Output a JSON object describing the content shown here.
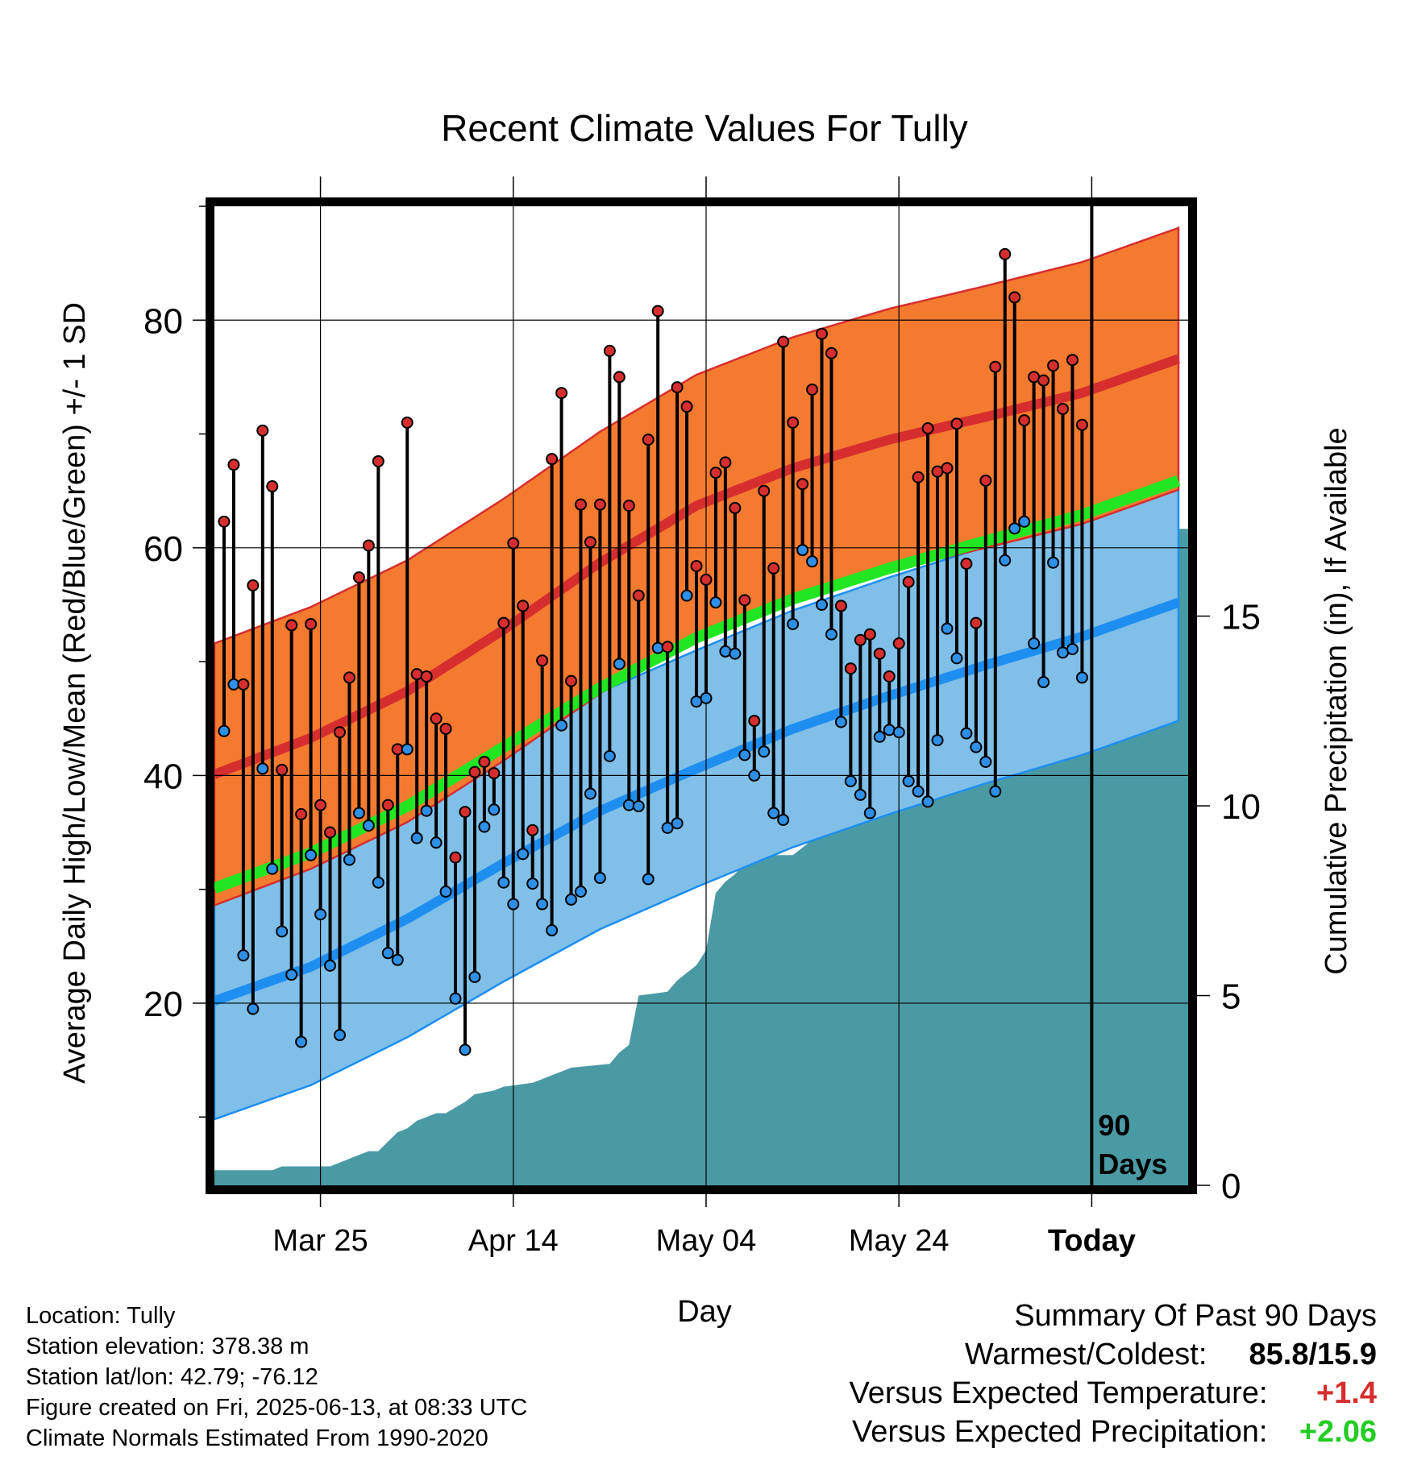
{
  "chart_data": {
    "type": "line",
    "title": "Recent Climate Values For Tully",
    "xlabel": "Day",
    "ylabel": "Average Daily High/Low/Mean (Red/Blue/Green) +/- 1 SD",
    "y2label": "Cumulative Precipitation (in), If Available",
    "x_ticks": [
      "Mar 25",
      "Apr 14",
      "May 04",
      "May 24",
      "Today"
    ],
    "x_tick_days": [
      11,
      31,
      51,
      71,
      91
    ],
    "xlim_days": [
      0,
      101
    ],
    "ylim": [
      4,
      90
    ],
    "y_ticks": [
      20,
      40,
      60,
      80
    ],
    "y2lim": [
      0,
      25.8
    ],
    "y2_ticks": [
      0,
      5,
      10,
      15
    ],
    "today_marker_label": "90 Days",
    "grid": true,
    "colors": {
      "high_band": "#f47a30",
      "high_mean": "#d62e2e",
      "low_band": "#7fbfe8",
      "low_mean": "#1e8ef0",
      "mean": "#22e622",
      "precip": "#4a9aa4",
      "high_dot": "#d62e2e",
      "low_dot": "#2e8fe6"
    },
    "normals": {
      "days": [
        0,
        10,
        20,
        30,
        40,
        50,
        60,
        70,
        80,
        90,
        100
      ],
      "high_mean": [
        40.1,
        43.3,
        47.4,
        52.8,
        58.7,
        63.7,
        67.0,
        69.5,
        71.5,
        73.6,
        76.6
      ],
      "high_sd": 11.5,
      "low_mean": [
        20.2,
        23.2,
        27.4,
        32.3,
        36.9,
        40.6,
        44.1,
        47.0,
        49.7,
        52.2,
        55.2
      ],
      "low_sd": 10.4,
      "mean": [
        30.1,
        33.2,
        37.3,
        42.5,
        47.7,
        52.1,
        55.5,
        58.2,
        60.6,
        62.9,
        65.9
      ]
    },
    "series": [
      {
        "name": "High",
        "values": [
          62.3,
          67.3,
          48.0,
          56.7,
          70.3,
          65.4,
          40.5,
          53.2,
          36.6,
          53.3,
          37.4,
          35.0,
          43.8,
          48.6,
          57.4,
          60.2,
          67.6,
          37.4,
          42.3,
          71.0,
          48.9,
          48.7,
          45.0,
          44.1,
          32.8,
          36.8,
          40.3,
          41.2,
          40.2,
          53.4,
          60.4,
          54.9,
          35.2,
          50.1,
          67.8,
          73.6,
          48.3,
          63.8,
          60.5,
          63.8,
          77.3,
          75.0,
          63.7,
          55.8,
          69.5,
          80.8,
          51.3,
          74.1,
          72.4,
          58.4,
          57.2,
          66.6,
          67.5,
          63.5,
          55.4,
          44.8,
          65.0,
          58.2,
          78.1,
          71.0,
          65.6,
          73.9,
          78.8,
          77.1,
          54.9,
          49.4,
          51.9,
          52.4,
          50.7,
          48.7,
          51.6,
          57.0,
          66.2,
          70.5,
          66.7,
          67.0,
          70.9,
          58.6,
          53.4,
          65.9,
          75.9,
          85.8,
          82.0,
          71.2,
          75.0,
          74.7,
          76.0,
          72.2,
          76.5,
          70.8
        ]
      },
      {
        "name": "Low",
        "values": [
          43.9,
          48.0,
          24.2,
          19.5,
          40.6,
          31.8,
          26.3,
          22.5,
          16.6,
          33.0,
          27.8,
          23.3,
          17.2,
          32.6,
          36.7,
          35.6,
          30.6,
          24.4,
          23.8,
          42.3,
          34.5,
          36.9,
          34.1,
          29.8,
          20.4,
          15.9,
          22.3,
          35.5,
          37.0,
          30.6,
          28.7,
          33.1,
          30.5,
          28.7,
          26.4,
          44.4,
          29.1,
          29.8,
          38.4,
          31.0,
          41.7,
          49.8,
          37.4,
          37.3,
          30.9,
          51.2,
          35.4,
          35.8,
          55.8,
          46.5,
          46.8,
          55.2,
          50.9,
          50.7,
          41.8,
          40.0,
          42.1,
          36.7,
          36.1,
          53.3,
          59.8,
          58.8,
          55.0,
          52.4,
          44.7,
          39.5,
          38.3,
          36.7,
          43.4,
          44.0,
          43.8,
          39.5,
          38.6,
          37.7,
          43.1,
          52.9,
          50.3,
          43.7,
          42.5,
          41.2,
          38.6,
          58.9,
          61.7,
          62.3,
          51.6,
          48.2,
          58.7,
          50.8,
          51.1,
          48.6
        ]
      },
      {
        "name": "Cumulative Precipitation",
        "days": [
          0,
          6,
          7,
          12,
          13,
          15,
          16,
          17,
          19,
          20,
          21,
          22,
          23,
          24,
          26,
          27,
          29,
          30,
          33,
          34,
          35,
          36,
          37,
          41,
          42,
          43,
          44,
          47,
          48,
          50,
          51,
          52,
          53,
          54,
          55,
          56,
          60,
          61,
          62,
          63,
          64,
          65,
          66,
          69,
          70,
          71,
          72,
          73,
          74,
          77,
          78,
          79,
          80,
          81,
          82,
          83,
          84,
          85,
          86,
          87,
          88,
          89,
          90,
          91,
          101
        ],
        "values": [
          0.4,
          0.4,
          0.5,
          0.5,
          0.6,
          0.8,
          0.9,
          0.9,
          1.4,
          1.5,
          1.7,
          1.8,
          1.9,
          1.9,
          2.2,
          2.4,
          2.5,
          2.6,
          2.7,
          2.8,
          2.9,
          3.0,
          3.1,
          3.2,
          3.5,
          3.7,
          5.0,
          5.1,
          5.4,
          5.8,
          6.2,
          7.7,
          8.0,
          8.2,
          8.5,
          8.7,
          8.7,
          8.9,
          9.1,
          9.2,
          9.5,
          10.0,
          10.5,
          10.5,
          10.8,
          11.0,
          11.1,
          11.3,
          11.4,
          11.4,
          11.6,
          12.0,
          12.2,
          12.4,
          13.0,
          14.0,
          14.7,
          15.2,
          16.0,
          16.5,
          17.0,
          17.3,
          17.3,
          17.3,
          17.3
        ]
      }
    ]
  },
  "footer": {
    "location": "Location: Tully",
    "elevation": "Station elevation: 378.38 m",
    "latlon": "Station lat/lon: 42.79; -76.12",
    "created": "Figure created on Fri, 2025-06-13, at 08:33 UTC",
    "normals": "Climate Normals Estimated From 1990-2020"
  },
  "summary": {
    "heading": "Summary Of Past 90 Days",
    "warmest_coldest_label": "Warmest/Coldest:",
    "warmest_coldest_value": "85.8/15.9",
    "temp_label": "Versus Expected Temperature:",
    "temp_value": "+1.4",
    "temp_color": "#d62e2e",
    "precip_label": "Versus Expected Precipitation:",
    "precip_value": "+2.06",
    "precip_color": "#22cc22"
  }
}
